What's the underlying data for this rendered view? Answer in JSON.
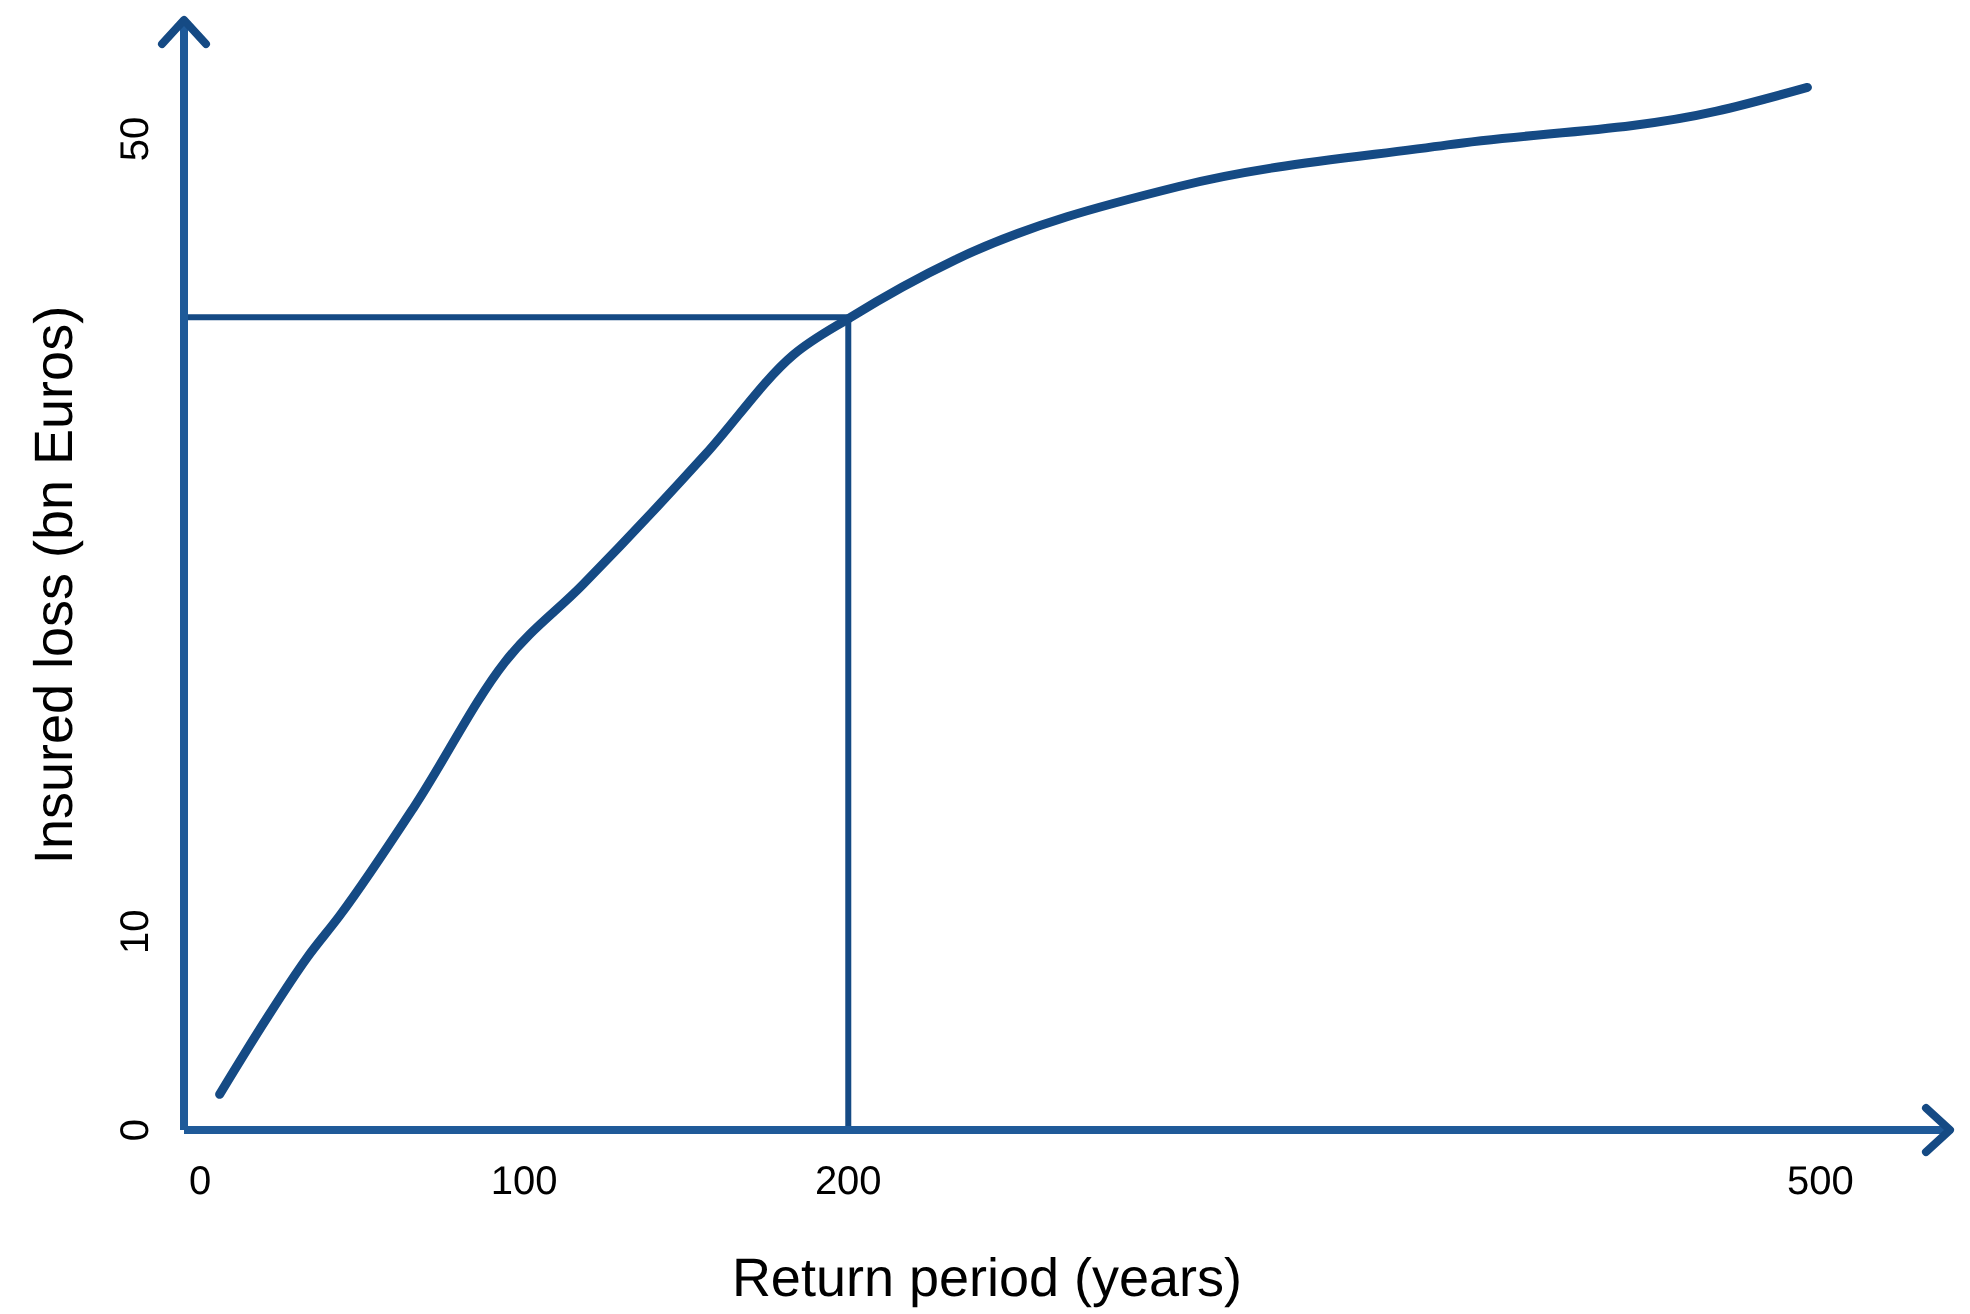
{
  "chart_data": {
    "type": "line",
    "xlabel": "Return period (years)",
    "ylabel": "Insured loss (bn Euros)",
    "xlim": [
      -5,
      540
    ],
    "ylim": [
      0,
      56
    ],
    "xticks": [
      0,
      100,
      200,
      500
    ],
    "yticks": [
      0,
      10,
      50
    ],
    "grid": false,
    "series": [
      {
        "color": "#154a84",
        "x": [
          6,
          20,
          33,
          43,
          66,
          94,
          118,
          156,
          183,
          200.7,
          233,
          302,
          385,
          468,
          496
        ],
        "values": [
          1.8,
          5.5,
          8.7,
          10.8,
          16.3,
          23.6,
          27.5,
          34.1,
          39.1,
          41,
          43.9,
          47.6,
          49.7,
          51.4,
          52.6
        ]
      },
      {
        "color": "#154a84",
        "x": [
          -5,
          200,
          200
        ],
        "values": [
          41,
          41,
          0
        ]
      }
    ]
  }
}
